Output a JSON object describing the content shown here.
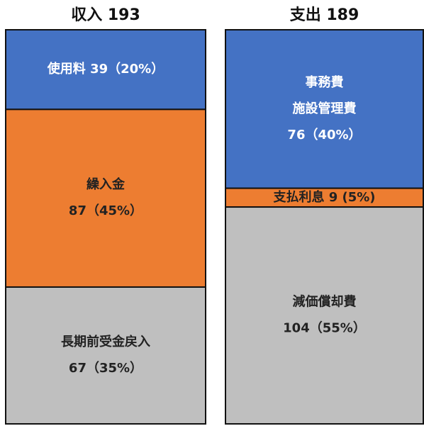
{
  "chart_data": {
    "type": "stacked-box",
    "columns": [
      {
        "title": "収入 193",
        "segments": [
          {
            "label": [
              "使用料  39（20%）"
            ],
            "value": 39,
            "color": "#4472c4",
            "text_color": "#ffffff"
          },
          {
            "label": [
              "繰入金",
              "87（45%）"
            ],
            "value": 87,
            "color": "#ed7d31",
            "text_color": "#222222"
          },
          {
            "label": [
              "長期前受金戻入",
              "67（35%）"
            ],
            "value": 67,
            "color": "#bfbfbf",
            "text_color": "#222222"
          }
        ]
      },
      {
        "title": "支出 189",
        "segments": [
          {
            "label": [
              "事務費",
              "施設管理費",
              "76（40%）"
            ],
            "value": 76,
            "color": "#4472c4",
            "text_color": "#ffffff"
          },
          {
            "label": [
              "支払利息 9 (5%)"
            ],
            "value": 9,
            "color": "#ed7d31",
            "text_color": "#222222"
          },
          {
            "label": [
              "減価償却費",
              "104（55%）"
            ],
            "value": 104,
            "color": "#bfbfbf",
            "text_color": "#222222"
          }
        ]
      }
    ]
  }
}
